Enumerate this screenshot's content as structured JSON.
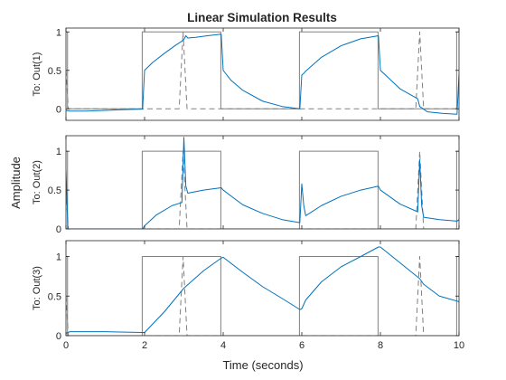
{
  "chart_data": {
    "type": "line",
    "title": "Linear Simulation Results",
    "xlabel": "Time (seconds)",
    "ylabel": "Amplitude",
    "xlim": [
      0,
      10
    ],
    "xticks": [
      0,
      2,
      4,
      6,
      8,
      10
    ],
    "grid": false,
    "legend": "none",
    "colors": {
      "response": "#0072bd",
      "input_square": "#808080",
      "input_pulse": "#808080",
      "axes": "#262626",
      "frame": "#262626",
      "background": "#ffffff"
    },
    "subplots": [
      {
        "ylabel": "To: Out(1)",
        "ylim": [
          -0.15,
          1.05
        ],
        "yticks": [
          0,
          0.5,
          1
        ],
        "ytick_labels": [
          "0",
          "0.5",
          "1"
        ],
        "series": [
          {
            "style": "solid",
            "color": "#808080",
            "points": [
              [
                0,
                1
              ],
              [
                0.04,
                1
              ],
              [
                0.04,
                0
              ],
              [
                1.94,
                0
              ],
              [
                1.94,
                1
              ],
              [
                3.94,
                1
              ],
              [
                3.94,
                0
              ],
              [
                5.94,
                0
              ],
              [
                5.94,
                1
              ],
              [
                7.94,
                1
              ],
              [
                7.94,
                0
              ],
              [
                9.94,
                0
              ],
              [
                9.94,
                1
              ],
              [
                10,
                1
              ]
            ]
          },
          {
            "style": "dashed",
            "color": "#808080",
            "points": [
              [
                0,
                0.5
              ],
              [
                0.06,
                0
              ],
              [
                2.88,
                0
              ],
              [
                2.98,
                1
              ],
              [
                3.08,
                0
              ],
              [
                6.0,
                0
              ],
              [
                6.06,
                0
              ],
              [
                8.9,
                0
              ],
              [
                9.0,
                1
              ],
              [
                9.1,
                0
              ],
              [
                10,
                0
              ]
            ]
          },
          {
            "style": "solid",
            "color": "#0072bd",
            "points": [
              [
                0,
                -0.02
              ],
              [
                0.1,
                -0.03
              ],
              [
                0.5,
                -0.03
              ],
              [
                1.0,
                -0.02
              ],
              [
                1.5,
                -0.01
              ],
              [
                1.95,
                -0.005
              ],
              [
                2.0,
                0.5
              ],
              [
                2.2,
                0.6
              ],
              [
                2.5,
                0.72
              ],
              [
                2.8,
                0.83
              ],
              [
                2.95,
                0.88
              ],
              [
                3.0,
                0.9
              ],
              [
                3.05,
                0.95
              ],
              [
                3.1,
                0.92
              ],
              [
                3.3,
                0.93
              ],
              [
                3.6,
                0.95
              ],
              [
                3.95,
                0.97
              ],
              [
                4.0,
                0.5
              ],
              [
                4.2,
                0.37
              ],
              [
                4.5,
                0.24
              ],
              [
                5.0,
                0.1
              ],
              [
                5.5,
                0.03
              ],
              [
                5.95,
                0.0
              ],
              [
                6.0,
                0.44
              ],
              [
                6.05,
                0.46
              ],
              [
                6.1,
                0.49
              ],
              [
                6.5,
                0.67
              ],
              [
                7.0,
                0.82
              ],
              [
                7.5,
                0.91
              ],
              [
                7.95,
                0.95
              ],
              [
                8.0,
                0.5
              ],
              [
                8.5,
                0.26
              ],
              [
                8.95,
                0.13
              ],
              [
                9.0,
                0.03
              ],
              [
                9.2,
                -0.04
              ],
              [
                9.6,
                -0.06
              ],
              [
                9.95,
                -0.07
              ],
              [
                10,
                0.45
              ]
            ]
          }
        ]
      },
      {
        "ylabel": "To: Out(2)",
        "ylim": [
          0,
          1.2
        ],
        "yticks": [
          0,
          0.5,
          1
        ],
        "ytick_labels": [
          "0",
          "0.5",
          "1"
        ],
        "series": [
          {
            "style": "solid",
            "color": "#808080",
            "points": [
              [
                0,
                1
              ],
              [
                0.04,
                1
              ],
              [
                0.04,
                0
              ],
              [
                1.94,
                0
              ],
              [
                1.94,
                1
              ],
              [
                3.94,
                1
              ],
              [
                3.94,
                0
              ],
              [
                5.94,
                0
              ],
              [
                5.94,
                1
              ],
              [
                7.94,
                1
              ],
              [
                7.94,
                0
              ],
              [
                9.94,
                0
              ],
              [
                9.94,
                1
              ],
              [
                10,
                1
              ]
            ]
          },
          {
            "style": "dashed",
            "color": "#808080",
            "points": [
              [
                0,
                0.5
              ],
              [
                0.06,
                0
              ],
              [
                2.88,
                0
              ],
              [
                2.98,
                1
              ],
              [
                3.08,
                0
              ],
              [
                6.0,
                0
              ],
              [
                6.06,
                0
              ],
              [
                8.9,
                0
              ],
              [
                9.0,
                1
              ],
              [
                9.1,
                0
              ],
              [
                10,
                0
              ]
            ]
          },
          {
            "style": "solid",
            "color": "#0072bd",
            "points": [
              [
                0,
                0.75
              ],
              [
                0.05,
                0.0
              ],
              [
                1.95,
                0.0
              ],
              [
                2.0,
                0.04
              ],
              [
                2.3,
                0.18
              ],
              [
                2.7,
                0.3
              ],
              [
                2.95,
                0.34
              ],
              [
                3.0,
                1.18
              ],
              [
                3.05,
                0.55
              ],
              [
                3.1,
                0.46
              ],
              [
                3.5,
                0.5
              ],
              [
                3.95,
                0.53
              ],
              [
                4.0,
                0.5
              ],
              [
                4.5,
                0.31
              ],
              [
                5.0,
                0.2
              ],
              [
                5.5,
                0.12
              ],
              [
                5.95,
                0.08
              ],
              [
                6.0,
                0.58
              ],
              [
                6.05,
                0.3
              ],
              [
                6.1,
                0.17
              ],
              [
                6.5,
                0.3
              ],
              [
                7.0,
                0.42
              ],
              [
                7.5,
                0.5
              ],
              [
                7.95,
                0.55
              ],
              [
                8.0,
                0.5
              ],
              [
                8.5,
                0.32
              ],
              [
                8.95,
                0.22
              ],
              [
                9.0,
                0.89
              ],
              [
                9.05,
                0.3
              ],
              [
                9.1,
                0.15
              ],
              [
                9.5,
                0.12
              ],
              [
                9.95,
                0.1
              ],
              [
                10,
                0.12
              ]
            ]
          }
        ]
      },
      {
        "ylabel": "To: Out(3)",
        "ylim": [
          0,
          1.2
        ],
        "yticks": [
          0,
          0.5,
          1
        ],
        "ytick_labels": [
          "0",
          "0.5",
          "1"
        ],
        "series": [
          {
            "style": "solid",
            "color": "#808080",
            "points": [
              [
                0,
                1
              ],
              [
                0.04,
                1
              ],
              [
                0.04,
                0
              ],
              [
                1.94,
                0
              ],
              [
                1.94,
                1
              ],
              [
                3.94,
                1
              ],
              [
                3.94,
                0
              ],
              [
                5.94,
                0
              ],
              [
                5.94,
                1
              ],
              [
                7.94,
                1
              ],
              [
                7.94,
                0
              ],
              [
                9.94,
                0
              ],
              [
                9.94,
                1
              ],
              [
                10,
                1
              ]
            ]
          },
          {
            "style": "dashed",
            "color": "#808080",
            "points": [
              [
                0,
                0.5
              ],
              [
                0.06,
                0
              ],
              [
                2.88,
                0
              ],
              [
                2.98,
                1
              ],
              [
                3.08,
                0
              ],
              [
                6.0,
                0
              ],
              [
                6.06,
                0
              ],
              [
                8.9,
                0
              ],
              [
                9.0,
                1
              ],
              [
                9.1,
                0
              ],
              [
                10,
                0
              ]
            ]
          },
          {
            "style": "solid",
            "color": "#0072bd",
            "points": [
              [
                0,
                0.03
              ],
              [
                0.1,
                0.05
              ],
              [
                1.0,
                0.05
              ],
              [
                1.95,
                0.04
              ],
              [
                2.0,
                0.04
              ],
              [
                2.5,
                0.3
              ],
              [
                3.0,
                0.6
              ],
              [
                3.5,
                0.82
              ],
              [
                3.95,
                0.98
              ],
              [
                4.0,
                0.99
              ],
              [
                4.5,
                0.8
              ],
              [
                5.0,
                0.62
              ],
              [
                5.5,
                0.47
              ],
              [
                5.95,
                0.33
              ],
              [
                6.0,
                0.34
              ],
              [
                6.1,
                0.45
              ],
              [
                6.5,
                0.68
              ],
              [
                7.0,
                0.87
              ],
              [
                7.5,
                1.0
              ],
              [
                7.95,
                1.12
              ],
              [
                8.0,
                1.12
              ],
              [
                8.5,
                0.92
              ],
              [
                9.0,
                0.72
              ],
              [
                9.1,
                0.65
              ],
              [
                9.5,
                0.5
              ],
              [
                10,
                0.43
              ]
            ]
          }
        ]
      }
    ]
  }
}
